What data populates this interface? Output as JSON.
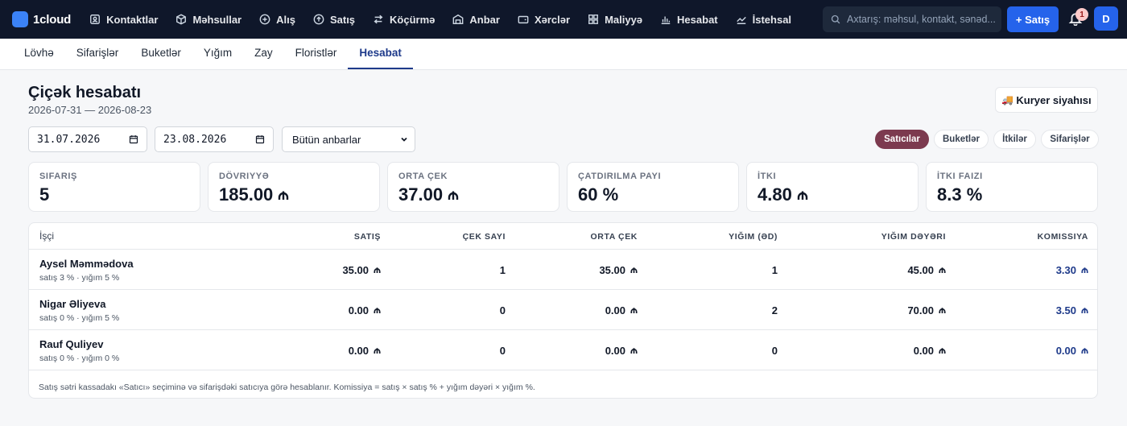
{
  "app": {
    "brand": "1cloud",
    "brand_color": "#3b82f6"
  },
  "topnav": {
    "items": [
      {
        "label": "Kontaktlar",
        "icon": "contacts-icon"
      },
      {
        "label": "Məhsullar",
        "icon": "box-icon"
      },
      {
        "label": "Alış",
        "icon": "plus-circle-icon"
      },
      {
        "label": "Satış",
        "icon": "arrow-up-circle-icon"
      },
      {
        "label": "Köçürmə",
        "icon": "transfer-icon"
      },
      {
        "label": "Anbar",
        "icon": "warehouse-icon"
      },
      {
        "label": "Xərclər",
        "icon": "wallet-icon"
      },
      {
        "label": "Maliyyə",
        "icon": "grid-icon"
      },
      {
        "label": "Hesabat",
        "icon": "bar-chart-icon"
      },
      {
        "label": "İstehsal",
        "icon": "line-chart-icon"
      },
      {
        "label": "",
        "icon": "document-icon"
      }
    ],
    "search_placeholder": "Axtarış: məhsul, kontakt, sənəd...",
    "new_sale_label": "+ Satış",
    "notification_count": "1",
    "avatar_initial": "D"
  },
  "subnav": {
    "tabs": [
      {
        "label": "Lövhə"
      },
      {
        "label": "Sifarişlər"
      },
      {
        "label": "Buketlər"
      },
      {
        "label": "Yığım"
      },
      {
        "label": "Zay"
      },
      {
        "label": "Floristlər"
      },
      {
        "label": "Hesabat",
        "active": true
      }
    ]
  },
  "page": {
    "title": "Çiçək hesabatı",
    "subtitle": "2026-07-31 — 2026-08-23",
    "courier_button": "Kuryer siyahısı"
  },
  "filters": {
    "date_from": "31.07.2026",
    "date_to": "23.08.2026",
    "warehouse": "Bütün anbarlar"
  },
  "view_toggle": {
    "options": [
      "Satıcılar",
      "Buketlər",
      "İtkilər",
      "Sifarişlər"
    ],
    "active": "Satıcılar",
    "active_color": "#7c3a4f"
  },
  "kpis": [
    {
      "label": "Sifariş",
      "value": "5",
      "currency": false
    },
    {
      "label": "Dövriyyə",
      "value": "185.00",
      "currency": true
    },
    {
      "label": "Orta çek",
      "value": "37.00",
      "currency": true
    },
    {
      "label": "Çatdırılma payı",
      "value": "60 %",
      "currency": false
    },
    {
      "label": "İtki",
      "value": "4.80",
      "currency": true
    },
    {
      "label": "İtki faizi",
      "value": "8.3 %",
      "currency": false
    }
  ],
  "table": {
    "columns": [
      "İşçi",
      "Satış",
      "Çek sayı",
      "Orta çek",
      "Yığım (əd)",
      "Yığım dəyəri",
      "Komissiya"
    ],
    "rows": [
      {
        "name": "Aysel Məmmədova",
        "meta": "satış 3 % · yığım 5 %",
        "sales": "35.00",
        "receipts": "1",
        "avg": "35.00",
        "picks": "1",
        "pick_value": "45.00",
        "commission": "3.30"
      },
      {
        "name": "Nigar Əliyeva",
        "meta": "satış 0 % · yığım 5 %",
        "sales": "0.00",
        "receipts": "0",
        "avg": "0.00",
        "picks": "2",
        "pick_value": "70.00",
        "commission": "3.50"
      },
      {
        "name": "Rauf Quliyev",
        "meta": "satış 0 % · yığım 0 %",
        "sales": "0.00",
        "receipts": "0",
        "avg": "0.00",
        "picks": "0",
        "pick_value": "0.00",
        "commission": "0.00"
      }
    ],
    "footnote": "Satış sətri kassadakı «Satıcı» seçiminə və sifarişdəki satıcıya görə hesablanır. Komissiya = satış × satış % + yığım dəyəri × yığım %."
  }
}
